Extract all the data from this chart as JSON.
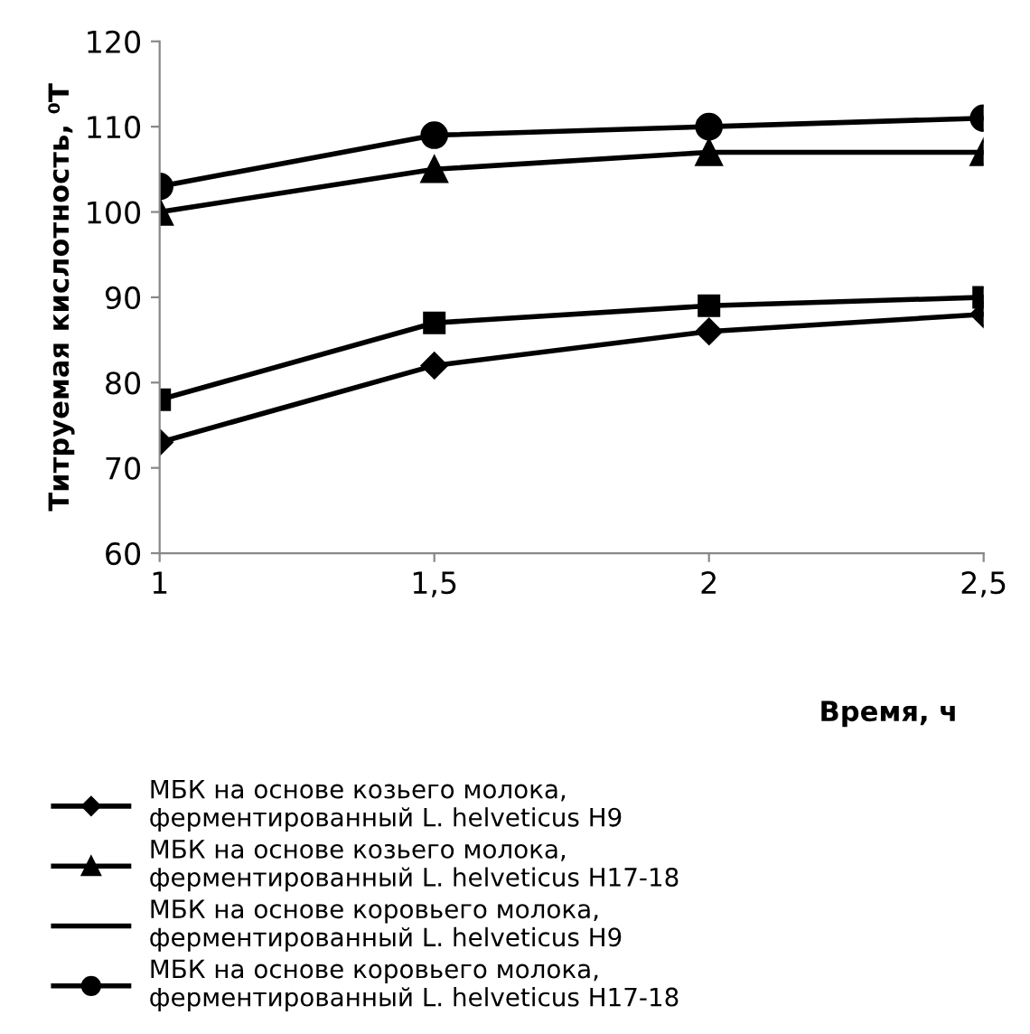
{
  "chart_data": {
    "type": "line",
    "ylabel": "Титруемая кислотность, ⁰Т",
    "xlabel": "Время, ч",
    "x": [
      1,
      1.5,
      2,
      2.5
    ],
    "series": [
      {
        "name": "МБК на основе козьего молока,\nферментированный L. helveticus H9",
        "color": "#000000",
        "marker": "diamond",
        "values": [
          73,
          82,
          86,
          88
        ]
      },
      {
        "name": "МБК на основе козьего молока,\nферментированный L. helveticus H17-18",
        "color": "#000000",
        "marker": "triangle",
        "values": [
          100,
          105,
          107,
          107
        ]
      },
      {
        "name": "МБК на основе коровьего молока,\nферментированный L. helveticus H9",
        "color": "#000000",
        "marker": "square",
        "values": [
          78,
          87,
          89,
          90
        ]
      },
      {
        "name": "МБК на основе коровьего молока,\nферментированный L. helveticus H17-18",
        "color": "#000000",
        "marker": "circle",
        "values": [
          103,
          109,
          110,
          111
        ]
      }
    ],
    "xlim": [
      1,
      2.5
    ],
    "xticks": [
      1,
      {
        "value": 1.5,
        "label": "1,5"
      },
      2,
      {
        "value": 2.5,
        "label": "2,5"
      }
    ],
    "ylim": [
      60,
      120
    ],
    "yticks": [
      60,
      70,
      80,
      90,
      100,
      110,
      120
    ],
    "grid": false,
    "legend": "bottom"
  }
}
